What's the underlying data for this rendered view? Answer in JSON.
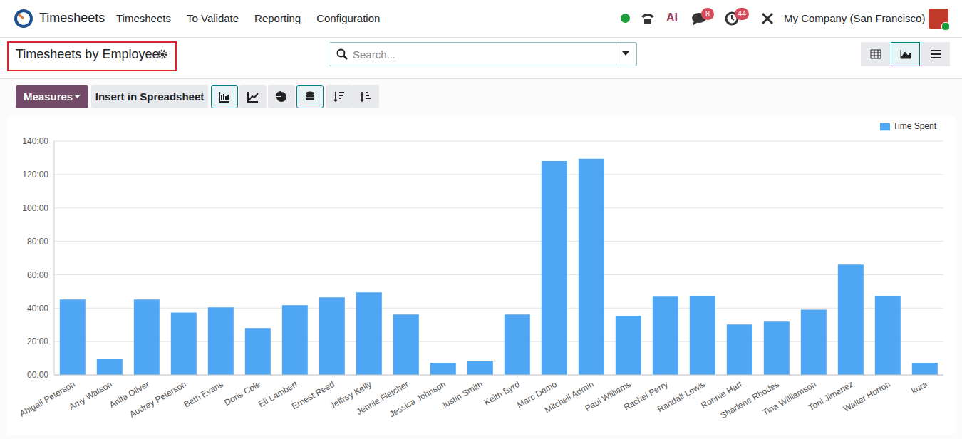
{
  "navbar": {
    "app": "Timesheets",
    "menu": [
      "Timesheets",
      "To Validate",
      "Reporting",
      "Configuration"
    ],
    "ai": "AI",
    "badges": [
      8,
      44
    ],
    "company": "My Company (San Francisco)"
  },
  "control_panel": {
    "title": "Timesheets by Employee",
    "search_placeholder": "Search...",
    "buttons": [
      "Measures",
      "Insert in Spreadsheet"
    ]
  },
  "chart_data": {
    "type": "bar",
    "categories": [
      "Abigail Peterson",
      "Amy Watson",
      "Anita Oliver",
      "Audrey Peterson",
      "Beth Evans",
      "Doris Cole",
      "Eli Lambert",
      "Ernest Reed",
      "Jeffrey Kelly",
      "Jennie Fletcher",
      "Jessica Johnson",
      "Justin Smith",
      "Keith Byrd",
      "Marc Demo",
      "Mitchell Admin",
      "Paul Williams",
      "Rachel Perry",
      "Randall Lewis",
      "Ronnie Hart",
      "Sharlene Rhodes",
      "Tina Williamson",
      "Toni Jimenez",
      "Walter Horton",
      "kura"
    ],
    "series": [
      {
        "name": "Time Spent",
        "color": "#4fa6f3",
        "values": [
          45.1,
          9.4,
          45.1,
          37.4,
          40.4,
          28.1,
          41.7,
          46.4,
          49.4,
          36.2,
          7.2,
          8.1,
          36.2,
          128.1,
          129.4,
          35.3,
          46.8,
          47.2,
          30.2,
          31.9,
          39.1,
          66,
          47.2,
          7.2
        ]
      }
    ],
    "ylim": [
      0,
      140
    ],
    "yticks": [
      {
        "value": 0,
        "label": "00:00"
      },
      {
        "value": 20,
        "label": "20:00"
      },
      {
        "value": 40,
        "label": "40:00"
      },
      {
        "value": 60,
        "label": "60:00"
      },
      {
        "value": 80,
        "label": "80:00"
      },
      {
        "value": 100,
        "label": "100:00"
      },
      {
        "value": 120,
        "label": "120:00"
      },
      {
        "value": 140,
        "label": "140:00"
      }
    ],
    "grid": true,
    "legend": "top-right"
  }
}
